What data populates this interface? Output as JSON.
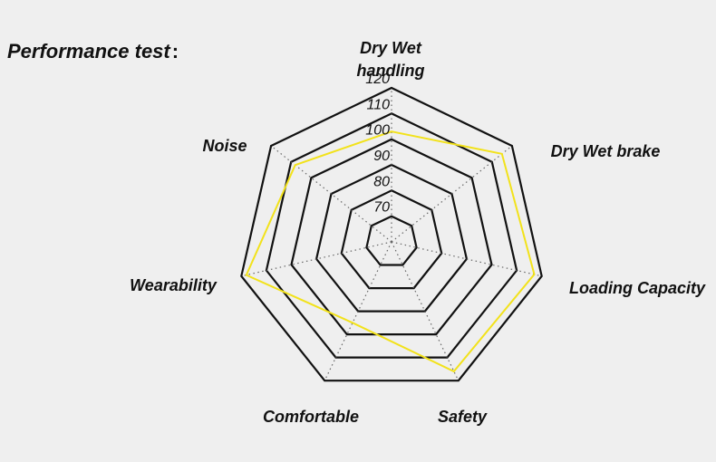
{
  "page_title": "Performance test",
  "title_suffix": ":",
  "chart_data": {
    "type": "radar",
    "axes": [
      "Dry Wet handling",
      "Dry Wet brake",
      "Loading Capacity",
      "Safety",
      "Comfortable",
      "Wearability",
      "Noise"
    ],
    "axis_label_lines": [
      [
        "Dry Wet",
        "handling"
      ],
      [
        "Dry Wet brake"
      ],
      [
        "Loading Capacity"
      ],
      [
        "Safety"
      ],
      [
        "Comfortable"
      ],
      [
        "Wearability"
      ],
      [
        "Noise"
      ]
    ],
    "rings": [
      70,
      80,
      90,
      100,
      110,
      120
    ],
    "tick_labels": [
      "70",
      "80",
      "90",
      "100",
      "110",
      "120"
    ],
    "range": [
      60,
      120
    ],
    "grid": true,
    "spokes": "dotted",
    "series": [
      {
        "values": [
          103,
          115,
          117,
          116,
          95,
          118,
          108
        ],
        "color": "#f2e21a"
      }
    ],
    "grid_color": "#111111"
  }
}
